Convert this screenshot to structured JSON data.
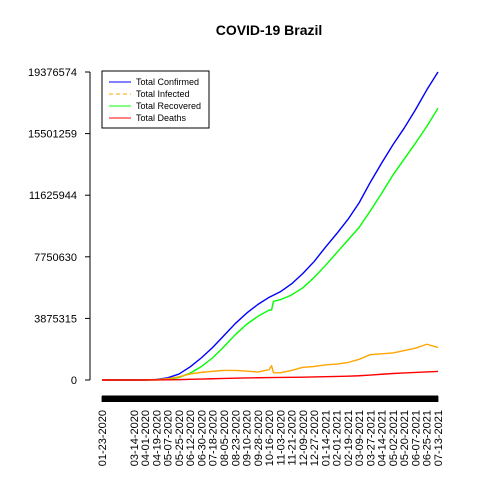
{
  "chart_data": {
    "type": "line",
    "title": "COVID-19 Brazil",
    "xlabel": "",
    "ylabel": "",
    "ylim": [
      0,
      19376574
    ],
    "y_ticks": [
      0,
      3875315,
      7750630,
      11625944,
      15501259,
      19376574
    ],
    "y_tick_labels": [
      "0",
      "3875315",
      "7750630",
      "11625944",
      "15501259",
      "19376574"
    ],
    "x_tick_labels": [
      "01-23-2020",
      "03-14-2020",
      "04-01-2020",
      "04-19-2020",
      "05-07-2020",
      "05-25-2020",
      "06-12-2020",
      "06-30-2020",
      "07-18-2020",
      "08-05-2020",
      "08-23-2020",
      "09-10-2020",
      "09-28-2020",
      "10-16-2020",
      "11-03-2020",
      "11-21-2020",
      "12-09-2020",
      "12-27-2020",
      "01-14-2021",
      "02-01-2021",
      "02-19-2021",
      "03-09-2021",
      "03-27-2021",
      "04-14-2021",
      "05-02-2021",
      "05-20-2021",
      "06-07-2021",
      "06-25-2021",
      "07-13-2021"
    ],
    "legend_position": "top-left",
    "grid": false,
    "series": [
      {
        "name": "Total Confirmed",
        "color": "#0000ff",
        "dash": "solid",
        "points": [
          [
            "01-23-2020",
            0
          ],
          [
            "03-14-2020",
            100
          ],
          [
            "04-01-2020",
            6800
          ],
          [
            "04-19-2020",
            38000
          ],
          [
            "05-07-2020",
            135000
          ],
          [
            "05-25-2020",
            375000
          ],
          [
            "06-12-2020",
            830000
          ],
          [
            "06-30-2020",
            1400000
          ],
          [
            "07-18-2020",
            2050000
          ],
          [
            "08-05-2020",
            2800000
          ],
          [
            "08-23-2020",
            3550000
          ],
          [
            "09-10-2020",
            4200000
          ],
          [
            "09-28-2020",
            4750000
          ],
          [
            "10-16-2020",
            5200000
          ],
          [
            "11-03-2020",
            5550000
          ],
          [
            "11-21-2020",
            6050000
          ],
          [
            "12-09-2020",
            6700000
          ],
          [
            "12-27-2020",
            7450000
          ],
          [
            "01-14-2021",
            8350000
          ],
          [
            "02-01-2021",
            9200000
          ],
          [
            "02-19-2021",
            10100000
          ],
          [
            "03-09-2021",
            11150000
          ],
          [
            "03-27-2021",
            12450000
          ],
          [
            "04-14-2021",
            13650000
          ],
          [
            "05-02-2021",
            14800000
          ],
          [
            "05-20-2021",
            15850000
          ],
          [
            "06-07-2021",
            17000000
          ],
          [
            "06-25-2021",
            18250000
          ],
          [
            "07-13-2021",
            19376574
          ]
        ]
      },
      {
        "name": "Total Infected",
        "color": "#ffa500",
        "dash": "dashed",
        "points": [
          [
            "01-23-2020",
            0
          ],
          [
            "03-14-2020",
            100
          ],
          [
            "04-01-2020",
            6500
          ],
          [
            "04-19-2020",
            30000
          ],
          [
            "05-07-2020",
            80000
          ],
          [
            "05-25-2020",
            200000
          ],
          [
            "06-12-2020",
            380000
          ],
          [
            "06-30-2020",
            480000
          ],
          [
            "07-18-2020",
            550000
          ],
          [
            "08-05-2020",
            600000
          ],
          [
            "08-23-2020",
            600000
          ],
          [
            "09-10-2020",
            560000
          ],
          [
            "09-28-2020",
            500000
          ],
          [
            "10-16-2020",
            650000
          ],
          [
            "10-20-2020",
            900000
          ],
          [
            "10-23-2020",
            450000
          ],
          [
            "11-03-2020",
            450000
          ],
          [
            "11-21-2020",
            600000
          ],
          [
            "12-09-2020",
            800000
          ],
          [
            "12-27-2020",
            850000
          ],
          [
            "01-14-2021",
            950000
          ],
          [
            "02-01-2021",
            1000000
          ],
          [
            "02-19-2021",
            1100000
          ],
          [
            "03-09-2021",
            1300000
          ],
          [
            "03-27-2021",
            1600000
          ],
          [
            "04-14-2021",
            1650000
          ],
          [
            "05-02-2021",
            1700000
          ],
          [
            "05-20-2021",
            1850000
          ],
          [
            "06-07-2021",
            2000000
          ],
          [
            "06-25-2021",
            2250000
          ],
          [
            "07-13-2021",
            2050000
          ]
        ]
      },
      {
        "name": "Total Recovered",
        "color": "#00ff00",
        "dash": "solid",
        "points": [
          [
            "01-23-2020",
            0
          ],
          [
            "03-14-2020",
            0
          ],
          [
            "04-01-2020",
            100
          ],
          [
            "04-19-2020",
            5000
          ],
          [
            "05-07-2020",
            50000
          ],
          [
            "05-25-2020",
            160000
          ],
          [
            "06-12-2020",
            430000
          ],
          [
            "06-30-2020",
            850000
          ],
          [
            "07-18-2020",
            1400000
          ],
          [
            "08-05-2020",
            2100000
          ],
          [
            "08-23-2020",
            2850000
          ],
          [
            "09-10-2020",
            3500000
          ],
          [
            "09-28-2020",
            4000000
          ],
          [
            "10-16-2020",
            4400000
          ],
          [
            "10-20-2020",
            4400000
          ],
          [
            "10-23-2020",
            4950000
          ],
          [
            "11-03-2020",
            5050000
          ],
          [
            "11-21-2020",
            5350000
          ],
          [
            "12-09-2020",
            5800000
          ],
          [
            "12-27-2020",
            6450000
          ],
          [
            "01-14-2021",
            7200000
          ],
          [
            "02-01-2021",
            8000000
          ],
          [
            "02-19-2021",
            8800000
          ],
          [
            "03-09-2021",
            9600000
          ],
          [
            "03-27-2021",
            10650000
          ],
          [
            "04-14-2021",
            11750000
          ],
          [
            "05-02-2021",
            12900000
          ],
          [
            "05-20-2021",
            13900000
          ],
          [
            "06-07-2021",
            14900000
          ],
          [
            "06-25-2021",
            15950000
          ],
          [
            "07-13-2021",
            17100000
          ]
        ]
      },
      {
        "name": "Total Deaths",
        "color": "#ff0000",
        "dash": "solid",
        "points": [
          [
            "01-23-2020",
            0
          ],
          [
            "03-14-2020",
            0
          ],
          [
            "04-01-2020",
            240
          ],
          [
            "04-19-2020",
            2500
          ],
          [
            "05-07-2020",
            9000
          ],
          [
            "05-25-2020",
            23000
          ],
          [
            "06-12-2020",
            41000
          ],
          [
            "06-30-2020",
            60000
          ],
          [
            "07-18-2020",
            78000
          ],
          [
            "08-05-2020",
            96000
          ],
          [
            "08-23-2020",
            114000
          ],
          [
            "09-10-2020",
            129000
          ],
          [
            "09-28-2020",
            142000
          ],
          [
            "10-16-2020",
            153000
          ],
          [
            "11-03-2020",
            161000
          ],
          [
            "11-21-2020",
            168000
          ],
          [
            "12-09-2020",
            178000
          ],
          [
            "12-27-2020",
            191000
          ],
          [
            "01-14-2021",
            207000
          ],
          [
            "02-01-2021",
            225000
          ],
          [
            "02-19-2021",
            243000
          ],
          [
            "03-09-2021",
            268000
          ],
          [
            "03-27-2021",
            310000
          ],
          [
            "04-14-2021",
            362000
          ],
          [
            "05-02-2021",
            408000
          ],
          [
            "05-20-2021",
            445000
          ],
          [
            "06-07-2021",
            475000
          ],
          [
            "06-25-2021",
            510000
          ],
          [
            "07-13-2021",
            537000
          ]
        ]
      }
    ]
  }
}
